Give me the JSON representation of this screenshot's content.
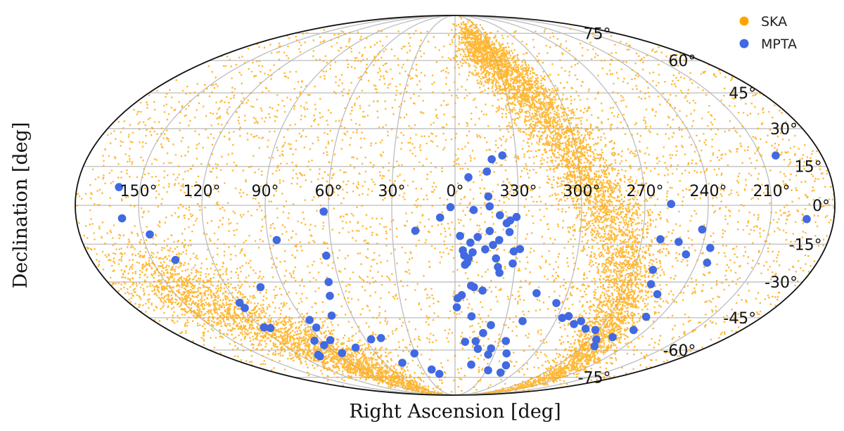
{
  "chart_data": {
    "type": "scatter",
    "projection": "mollweide",
    "xlabel": "Right Ascension [deg]",
    "ylabel": "Declination [deg]",
    "grid": true,
    "x_range_deg": [
      -180,
      180
    ],
    "y_range_deg": [
      -90,
      90
    ],
    "x_ticks": [
      {
        "deg": -150,
        "label": "210°"
      },
      {
        "deg": -120,
        "label": "240°"
      },
      {
        "deg": -90,
        "label": "270°"
      },
      {
        "deg": -60,
        "label": "300°"
      },
      {
        "deg": -30,
        "label": "330°"
      },
      {
        "deg": 0,
        "label": "0°"
      },
      {
        "deg": 30,
        "label": "30°"
      },
      {
        "deg": 60,
        "label": "60°"
      },
      {
        "deg": 90,
        "label": "90°"
      },
      {
        "deg": 120,
        "label": "120°"
      },
      {
        "deg": 150,
        "label": "150°"
      }
    ],
    "y_ticks": [
      {
        "deg": 75,
        "label": "75°"
      },
      {
        "deg": 60,
        "label": "60°"
      },
      {
        "deg": 45,
        "label": "45°"
      },
      {
        "deg": 30,
        "label": "30°"
      },
      {
        "deg": 15,
        "label": "15°"
      },
      {
        "deg": 0,
        "label": "0°"
      },
      {
        "deg": -15,
        "label": "-15°"
      },
      {
        "deg": -30,
        "label": "-30°"
      },
      {
        "deg": -45,
        "label": "-45°"
      },
      {
        "deg": -60,
        "label": "-60°"
      },
      {
        "deg": -75,
        "label": "-75°"
      }
    ],
    "legend": {
      "position": "top-right",
      "entries": [
        "SKA",
        "MPTA"
      ]
    },
    "series": [
      {
        "name": "SKA",
        "color": "#ffa500",
        "marker": "small dots",
        "approx_count": 15000,
        "distribution": "dense along the Galactic plane (band from RA ~270° dec -60° up through RA ~300°-330° dec +60°, and around RA ~90°-150° dec -30° to -75°), sparse uniform elsewhere; declinations up to about +75°"
      },
      {
        "name": "MPTA",
        "color": "#4169e1",
        "marker": "large dots",
        "points": [
          [
            -157.5,
            19.3
          ],
          [
            -167.1,
            -5.3
          ],
          [
            -102.4,
            0.5
          ],
          [
            -118.1,
            -9.3
          ],
          [
            -124.1,
            -16.5
          ],
          [
            -125.3,
            -22.3
          ],
          [
            -113.3,
            -19.0
          ],
          [
            -108.0,
            -14.1
          ],
          [
            -98.9,
            -13.1
          ],
          [
            -99.7,
            -25.1
          ],
          [
            -102.1,
            -30.9
          ],
          [
            -108.5,
            -35.0
          ],
          [
            -111.9,
            -44.6
          ],
          [
            -112.2,
            -50.5
          ],
          [
            -103.8,
            -53.8
          ],
          [
            -98.6,
            -58.1
          ],
          [
            -94.7,
            -54.9
          ],
          [
            -88.2,
            -50.5
          ],
          [
            -81.4,
            -49.9
          ],
          [
            -75.4,
            -46.5
          ],
          [
            -72.2,
            -47.8
          ],
          [
            -66.3,
            -44.3
          ],
          [
            -63.1,
            -45.1
          ],
          [
            -56.0,
            -38.7
          ],
          [
            -43.6,
            -34.6
          ],
          [
            -40.4,
            -46.5
          ],
          [
            -34.4,
            -55.6
          ],
          [
            -39.0,
            -61.7
          ],
          [
            -44.9,
            -68.0
          ],
          [
            -45.6,
            -72.1
          ],
          [
            -31.7,
            -70.8
          ],
          [
            -26.0,
            -59.2
          ],
          [
            -25.4,
            -62.3
          ],
          [
            -14.0,
            -55.7
          ],
          [
            -6.8,
            -56.0
          ],
          [
            -14.6,
            -33.5
          ],
          [
            -9.9,
            -32.1
          ],
          [
            -5.0,
            -23.1
          ],
          [
            -2.4,
            -11.8
          ],
          [
            -4.5,
            -19.4
          ],
          [
            -6.7,
            -20.6
          ],
          [
            -7.4,
            -14.4
          ],
          [
            -8.6,
            -18.2
          ],
          [
            -10.9,
            -12.2
          ],
          [
            -14.7,
            -17.0
          ],
          [
            -16.6,
            -9.9
          ],
          [
            -18.4,
            -15.3
          ],
          [
            -20.2,
            -20.6
          ],
          [
            -21.3,
            -13.4
          ],
          [
            -21.5,
            -24.0
          ],
          [
            -22.5,
            -26.3
          ],
          [
            -24.6,
            -6.9
          ],
          [
            -29.2,
            -4.5
          ],
          [
            -31.6,
            -16.9
          ],
          [
            -26.2,
            -5.8
          ],
          [
            -28.7,
            -17.8
          ],
          [
            -28.7,
            -22.6
          ],
          [
            -17.9,
            17.8
          ],
          [
            -15.3,
            13.0
          ],
          [
            -6.4,
            10.8
          ],
          [
            -15.8,
            3.4
          ],
          [
            -8.8,
            -1.8
          ],
          [
            -16.4,
            -0.4
          ],
          [
            -21.3,
            -3.8
          ],
          [
            -26.1,
            -10.3
          ],
          [
            -23.2,
            19.3
          ],
          [
            2.2,
            -0.7
          ],
          [
            7.1,
            -4.7
          ],
          [
            19.0,
            -9.8
          ],
          [
            -3.8,
            -17.4
          ],
          [
            -8.4,
            -31.5
          ],
          [
            -3.6,
            -35.4
          ],
          [
            -9.6,
            -44.4
          ],
          [
            -21.9,
            -48.3
          ],
          [
            -18.0,
            -51.9
          ],
          [
            -14.1,
            -67.6
          ],
          [
            -16.5,
            -59.4
          ],
          [
            -1.4,
            -36.7
          ],
          [
            -1.0,
            -40.5
          ],
          [
            -6.0,
            -22.2
          ],
          [
            22.1,
            -70.3
          ],
          [
            16.2,
            -72.9
          ],
          [
            30.8,
            -61.7
          ],
          [
            44.8,
            -66.6
          ],
          [
            49.1,
            -54.2
          ],
          [
            56.2,
            -54.8
          ],
          [
            71.2,
            -58.8
          ],
          [
            84.0,
            -55.2
          ],
          [
            86.0,
            -49.4
          ],
          [
            86.5,
            -46.0
          ],
          [
            71.9,
            -44.1
          ],
          [
            67.5,
            -35.7
          ],
          [
            65.5,
            -30.0
          ],
          [
            63.3,
            -19.5
          ],
          [
            62.3,
            -2.4
          ],
          [
            86.0,
            -13.4
          ],
          [
            102.2,
            -32.1
          ],
          [
            118.5,
            -40.8
          ],
          [
            119.0,
            -38.6
          ],
          [
            114.7,
            -49.6
          ],
          [
            118.2,
            -49.3
          ],
          [
            95.1,
            -55.5
          ],
          [
            91.8,
            -57.6
          ],
          [
            105.3,
            -62.4
          ],
          [
            105.7,
            -63.2
          ],
          [
            85.3,
            -61.5
          ],
          [
            160.0,
            7.0
          ],
          [
            158.2,
            -5.0
          ],
          [
            146.4,
            -11.2
          ],
          [
            138.4,
            -21.2
          ]
        ]
      }
    ]
  }
}
